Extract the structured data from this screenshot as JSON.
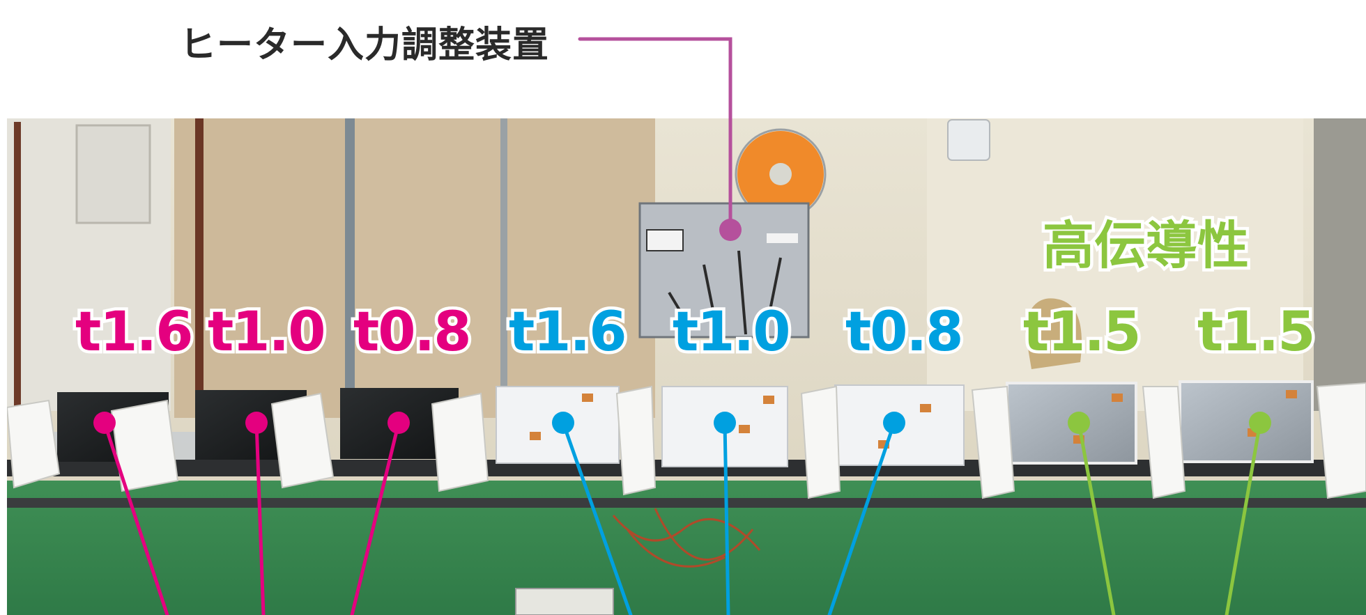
{
  "header": {
    "title": "ヒーター入力調整装置"
  },
  "panel_labels": [
    {
      "text": "t1.6",
      "color": "#e4007f"
    },
    {
      "text": "t1.0",
      "color": "#e4007f"
    },
    {
      "text": "t0.8",
      "color": "#e4007f"
    },
    {
      "text": "t1.6",
      "color": "#00a0e0"
    },
    {
      "text": "t1.0",
      "color": "#00a0e0"
    },
    {
      "text": "t0.8",
      "color": "#00a0e0"
    },
    {
      "text": "t1.5",
      "color": "#8cc63f"
    },
    {
      "text": "t1.5",
      "color": "#8cc63f"
    }
  ],
  "group_label": {
    "text": "高伝導性",
    "color": "#8cc63f"
  },
  "colors": {
    "callout": "#b5509c",
    "group_magenta": "#e4007f",
    "group_cyan": "#00a0e0",
    "group_green": "#8cc63f"
  }
}
